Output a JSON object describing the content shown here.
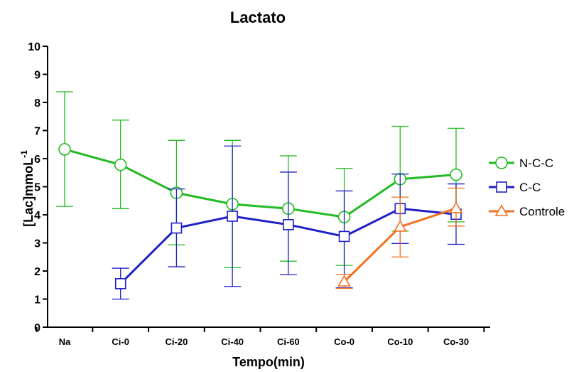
{
  "chart_data": {
    "type": "line",
    "title": "Lactato",
    "xlabel": "Tempo(min)",
    "ylabel": "[Lac]mmoL",
    "ylabel_sup": "-1",
    "categories": [
      "Na",
      "Ci-0",
      "Ci-20",
      "Ci-40",
      "Ci-60",
      "Co-0",
      "Co-10",
      "Co-30"
    ],
    "ylim": [
      0,
      10
    ],
    "yticks": [
      0,
      1,
      2,
      3,
      4,
      5,
      6,
      7,
      8,
      9,
      10
    ],
    "legend_position": "right",
    "grid": false,
    "series": [
      {
        "name": "N-C-C",
        "color": "#22bb22",
        "marker": "circle",
        "values": [
          6.33,
          5.78,
          4.78,
          4.38,
          4.22,
          3.92,
          5.27,
          5.43
        ],
        "err_low": [
          4.3,
          4.22,
          2.93,
          2.12,
          2.35,
          2.2,
          3.42,
          3.75
        ],
        "err_high": [
          8.38,
          7.37,
          6.65,
          6.65,
          6.1,
          5.65,
          7.15,
          7.08
        ]
      },
      {
        "name": "C-C",
        "color": "#1f1fc8",
        "marker": "square",
        "values": [
          null,
          1.55,
          3.53,
          3.95,
          3.65,
          3.23,
          4.22,
          4.02
        ],
        "err_low": [
          null,
          1.0,
          2.15,
          1.45,
          1.87,
          1.4,
          2.98,
          2.95
        ],
        "err_high": [
          null,
          2.1,
          4.92,
          6.45,
          5.52,
          4.85,
          5.45,
          5.1
        ]
      },
      {
        "name": "Controle",
        "color": "#f07020",
        "marker": "triangle",
        "values": [
          null,
          null,
          null,
          null,
          null,
          1.62,
          3.57,
          4.23
        ],
        "err_low": [
          null,
          null,
          null,
          null,
          null,
          1.38,
          2.5,
          3.6
        ],
        "err_high": [
          null,
          null,
          null,
          null,
          null,
          1.88,
          4.63,
          4.95
        ]
      }
    ]
  }
}
